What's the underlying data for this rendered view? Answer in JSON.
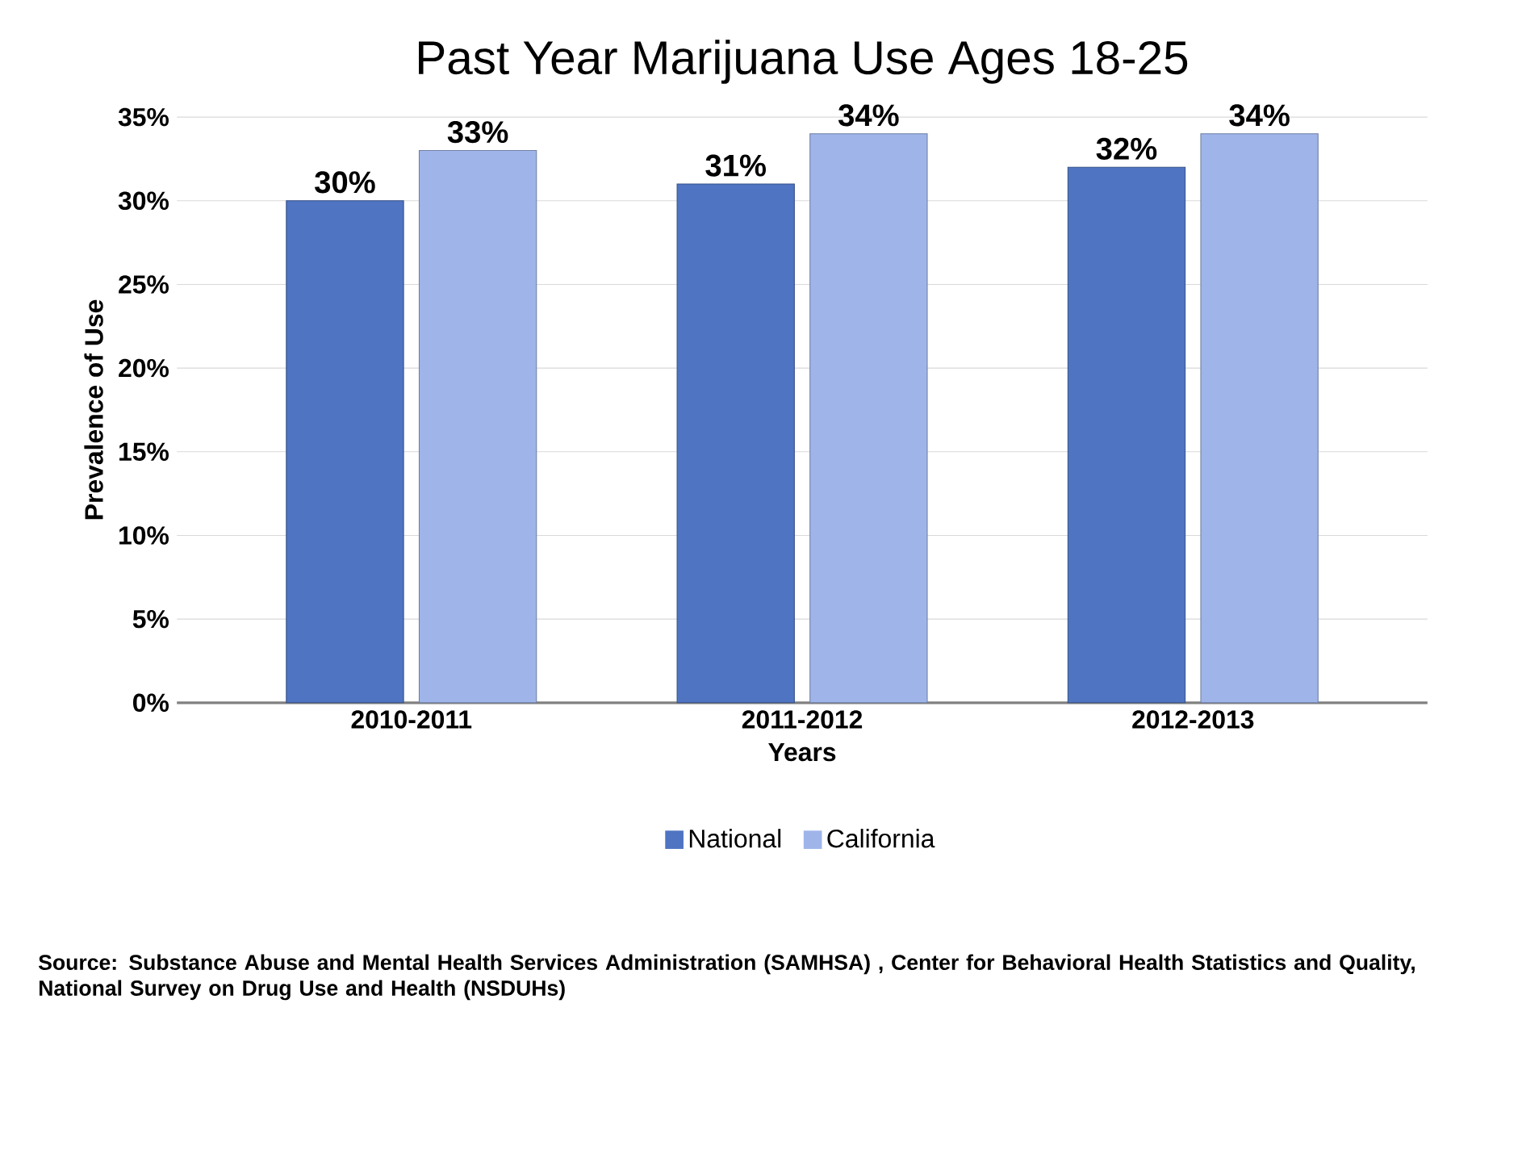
{
  "chart_data": {
    "type": "bar",
    "title": "Past Year Marijuana Use Ages 18-25",
    "xlabel": "Years",
    "ylabel": "Prevalence of Use",
    "categories": [
      "2010-2011",
      "2011-2012",
      "2012-2013"
    ],
    "series": [
      {
        "name": "National",
        "color": "#4f74c2",
        "values": [
          30,
          31,
          32
        ],
        "value_labels": [
          "30%",
          "31%",
          "32%"
        ]
      },
      {
        "name": "California",
        "color": "#9fb5ea",
        "values": [
          33,
          34,
          34
        ],
        "value_labels": [
          "33%",
          "34%",
          "34%"
        ]
      }
    ],
    "ylim": [
      0,
      35
    ],
    "yticks": [
      {
        "value": 0,
        "label": "0%"
      },
      {
        "value": 5,
        "label": "5%"
      },
      {
        "value": 10,
        "label": "10%"
      },
      {
        "value": 15,
        "label": "15%"
      },
      {
        "value": 20,
        "label": "20%"
      },
      {
        "value": 25,
        "label": "25%"
      },
      {
        "value": 30,
        "label": "30%"
      },
      {
        "value": 35,
        "label": "35%"
      }
    ],
    "grid": "y",
    "legend": "bottom",
    "annotations": [
      "Source:  Substance Abuse and Mental Health Services Administration (SAMHSA) , Center for Behavioral Health Statistics and Quality, National Survey on Drug Use and Health (NSDUHs)"
    ]
  }
}
